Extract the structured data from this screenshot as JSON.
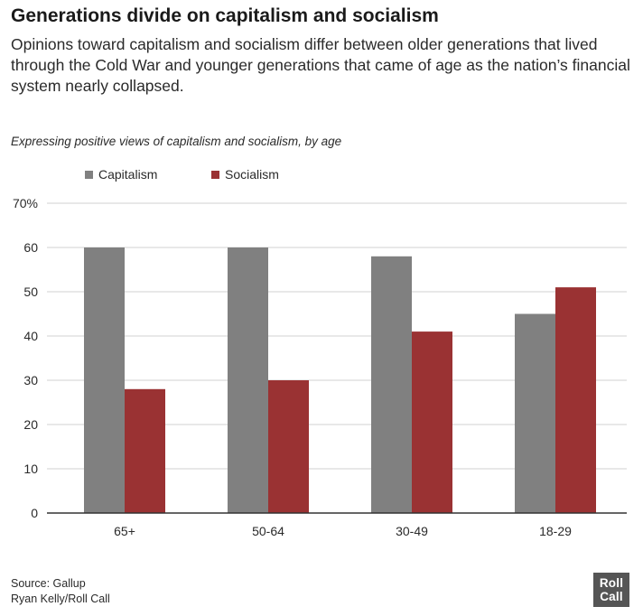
{
  "header": {
    "title": "Generations divide on capitalism and socialism",
    "subtitle": "Opinions toward capitalism and socialism differ between older generations that lived through the Cold War and younger generations that came of age as the nation’s financial system nearly collapsed."
  },
  "chart_data": {
    "type": "bar",
    "title": "Expressing positive views of capitalism and socialism, by age",
    "categories": [
      "65+",
      "50-64",
      "30-49",
      "18-29"
    ],
    "series": [
      {
        "name": "Capitalism",
        "color": "#808080",
        "values": [
          60,
          60,
          58,
          45
        ]
      },
      {
        "name": "Socialism",
        "color": "#9a3233",
        "values": [
          28,
          30,
          41,
          51
        ]
      }
    ],
    "ylim": [
      0,
      70
    ],
    "yticks": [
      0,
      10,
      20,
      30,
      40,
      50,
      60,
      70
    ],
    "ytick_labels": [
      "0",
      "10",
      "20",
      "30",
      "40",
      "50",
      "60",
      "70%"
    ],
    "grid": true,
    "legend_position": "top-left"
  },
  "footer": {
    "source": "Source: Gallup",
    "credit": "Ryan Kelly/Roll Call"
  },
  "logo": {
    "line1": "Roll",
    "line2": "Call"
  }
}
